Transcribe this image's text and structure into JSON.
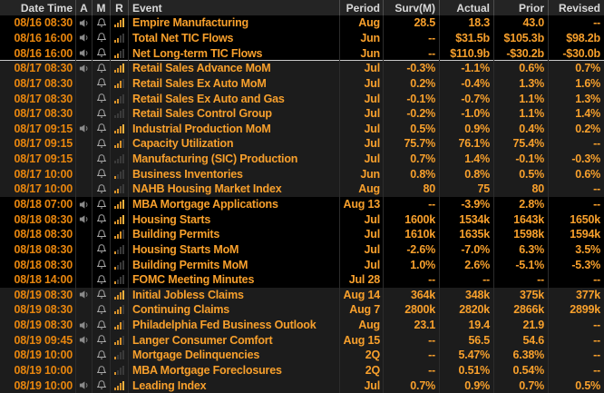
{
  "theme": {
    "background": "#000000",
    "alt_group_background": "#1c1c1c",
    "header_background": "#242424",
    "header_text": "#d9d9d9",
    "datetime_text": "#e8860e",
    "value_text": "#f8a02c",
    "separator": "#2c2c2c",
    "selection_line": "#c9c9c9",
    "relevance_bar_lit": "#d8922a",
    "relevance_bar_unlit": "#3a3a3a",
    "speaker_icon_color": "#8a8a8a",
    "bell_icon_color": "#a8a8a8"
  },
  "icons": {
    "alert": "speaker-icon",
    "monitor": "bell-icon",
    "relevance": "relevance-bars-icon"
  },
  "table": {
    "columns": [
      {
        "key": "datetime",
        "label": "Date Time"
      },
      {
        "key": "alert",
        "label": "A"
      },
      {
        "key": "monitor",
        "label": "M"
      },
      {
        "key": "relevance",
        "label": "R"
      },
      {
        "key": "event",
        "label": "Event"
      },
      {
        "key": "period",
        "label": "Period"
      },
      {
        "key": "survey",
        "label": "Surv(M)"
      },
      {
        "key": "actual",
        "label": "Actual"
      },
      {
        "key": "prior",
        "label": "Prior"
      },
      {
        "key": "revised",
        "label": "Revised"
      }
    ],
    "rows": [
      {
        "date_time": "08/16 08:30",
        "alert_speaker": true,
        "monitor_bell": true,
        "relevance": 4,
        "event": "Empire Manufacturing",
        "period": "Aug",
        "surv": "28.5",
        "actual": "18.3",
        "prior": "43.0",
        "revised": "--",
        "selected": false
      },
      {
        "date_time": "08/16 16:00",
        "alert_speaker": true,
        "monitor_bell": true,
        "relevance": 2,
        "event": "Total Net TIC Flows",
        "period": "Jun",
        "surv": "--",
        "actual": "$31.5b",
        "prior": "$105.3b",
        "revised": "$98.2b",
        "selected": false
      },
      {
        "date_time": "08/16 16:00",
        "alert_speaker": true,
        "monitor_bell": true,
        "relevance": 2,
        "event": "Net Long-term TIC Flows",
        "period": "Jun",
        "surv": "--",
        "actual": "$110.9b",
        "prior": "-$30.2b",
        "revised": "-$30.0b",
        "selected": true
      },
      {
        "date_time": "08/17 08:30",
        "alert_speaker": true,
        "monitor_bell": true,
        "relevance": 4,
        "event": "Retail Sales Advance MoM",
        "period": "Jul",
        "surv": "-0.3%",
        "actual": "-1.1%",
        "prior": "0.6%",
        "revised": "0.7%",
        "selected": false
      },
      {
        "date_time": "08/17 08:30",
        "alert_speaker": false,
        "monitor_bell": true,
        "relevance": 3,
        "event": "Retail Sales Ex Auto MoM",
        "period": "Jul",
        "surv": "0.2%",
        "actual": "-0.4%",
        "prior": "1.3%",
        "revised": "1.6%",
        "selected": false
      },
      {
        "date_time": "08/17 08:30",
        "alert_speaker": false,
        "monitor_bell": true,
        "relevance": 2,
        "event": "Retail Sales Ex Auto and Gas",
        "period": "Jul",
        "surv": "-0.1%",
        "actual": "-0.7%",
        "prior": "1.1%",
        "revised": "1.3%",
        "selected": false
      },
      {
        "date_time": "08/17 08:30",
        "alert_speaker": false,
        "monitor_bell": true,
        "relevance": 0,
        "event": "Retail Sales Control Group",
        "period": "Jul",
        "surv": "-0.2%",
        "actual": "-1.0%",
        "prior": "1.1%",
        "revised": "1.4%",
        "selected": false
      },
      {
        "date_time": "08/17 09:15",
        "alert_speaker": true,
        "monitor_bell": true,
        "relevance": 4,
        "event": "Industrial Production MoM",
        "period": "Jul",
        "surv": "0.5%",
        "actual": "0.9%",
        "prior": "0.4%",
        "revised": "0.2%",
        "selected": false
      },
      {
        "date_time": "08/17 09:15",
        "alert_speaker": false,
        "monitor_bell": true,
        "relevance": 3,
        "event": "Capacity Utilization",
        "period": "Jul",
        "surv": "75.7%",
        "actual": "76.1%",
        "prior": "75.4%",
        "revised": "--",
        "selected": false
      },
      {
        "date_time": "08/17 09:15",
        "alert_speaker": false,
        "monitor_bell": true,
        "relevance": 0,
        "event": "Manufacturing (SIC) Production",
        "period": "Jul",
        "surv": "0.7%",
        "actual": "1.4%",
        "prior": "-0.1%",
        "revised": "-0.3%",
        "selected": false
      },
      {
        "date_time": "08/17 10:00",
        "alert_speaker": false,
        "monitor_bell": true,
        "relevance": 1,
        "event": "Business Inventories",
        "period": "Jun",
        "surv": "0.8%",
        "actual": "0.8%",
        "prior": "0.5%",
        "revised": "0.6%",
        "selected": false
      },
      {
        "date_time": "08/17 10:00",
        "alert_speaker": false,
        "monitor_bell": true,
        "relevance": 2,
        "event": "NAHB Housing Market Index",
        "period": "Aug",
        "surv": "80",
        "actual": "75",
        "prior": "80",
        "revised": "--",
        "selected": false
      },
      {
        "date_time": "08/18 07:00",
        "alert_speaker": true,
        "monitor_bell": true,
        "relevance": 4,
        "event": "MBA Mortgage Applications",
        "period": "Aug 13",
        "surv": "--",
        "actual": "-3.9%",
        "prior": "2.8%",
        "revised": "--",
        "selected": false
      },
      {
        "date_time": "08/18 08:30",
        "alert_speaker": true,
        "monitor_bell": true,
        "relevance": 4,
        "event": "Housing Starts",
        "period": "Jul",
        "surv": "1600k",
        "actual": "1534k",
        "prior": "1643k",
        "revised": "1650k",
        "selected": false
      },
      {
        "date_time": "08/18 08:30",
        "alert_speaker": false,
        "monitor_bell": true,
        "relevance": 3,
        "event": "Building Permits",
        "period": "Jul",
        "surv": "1610k",
        "actual": "1635k",
        "prior": "1598k",
        "revised": "1594k",
        "selected": false
      },
      {
        "date_time": "08/18 08:30",
        "alert_speaker": false,
        "monitor_bell": true,
        "relevance": 1,
        "event": "Housing Starts MoM",
        "period": "Jul",
        "surv": "-2.6%",
        "actual": "-7.0%",
        "prior": "6.3%",
        "revised": "3.5%",
        "selected": false
      },
      {
        "date_time": "08/18 08:30",
        "alert_speaker": false,
        "monitor_bell": true,
        "relevance": 1,
        "event": "Building Permits MoM",
        "period": "Jul",
        "surv": "1.0%",
        "actual": "2.6%",
        "prior": "-5.1%",
        "revised": "-5.3%",
        "selected": false
      },
      {
        "date_time": "08/18 14:00",
        "alert_speaker": false,
        "monitor_bell": true,
        "relevance": 1,
        "event": "FOMC Meeting Minutes",
        "period": "Jul 28",
        "surv": "--",
        "actual": "--",
        "prior": "--",
        "revised": "--",
        "selected": false
      },
      {
        "date_time": "08/19 08:30",
        "alert_speaker": true,
        "monitor_bell": true,
        "relevance": 4,
        "event": "Initial Jobless Claims",
        "period": "Aug 14",
        "surv": "364k",
        "actual": "348k",
        "prior": "375k",
        "revised": "377k",
        "selected": false
      },
      {
        "date_time": "08/19 08:30",
        "alert_speaker": false,
        "monitor_bell": true,
        "relevance": 3,
        "event": "Continuing Claims",
        "period": "Aug 7",
        "surv": "2800k",
        "actual": "2820k",
        "prior": "2866k",
        "revised": "2899k",
        "selected": false
      },
      {
        "date_time": "08/19 08:30",
        "alert_speaker": true,
        "monitor_bell": true,
        "relevance": 3,
        "event": "Philadelphia Fed Business Outlook",
        "period": "Aug",
        "surv": "23.1",
        "actual": "19.4",
        "prior": "21.9",
        "revised": "--",
        "selected": false
      },
      {
        "date_time": "08/19 09:45",
        "alert_speaker": true,
        "monitor_bell": true,
        "relevance": 3,
        "event": "Langer Consumer Comfort",
        "period": "Aug 15",
        "surv": "--",
        "actual": "56.5",
        "prior": "54.6",
        "revised": "--",
        "selected": false
      },
      {
        "date_time": "08/19 10:00",
        "alert_speaker": false,
        "monitor_bell": true,
        "relevance": 1,
        "event": "Mortgage Delinquencies",
        "period": "2Q",
        "surv": "--",
        "actual": "5.47%",
        "prior": "6.38%",
        "revised": "--",
        "selected": false
      },
      {
        "date_time": "08/19 10:00",
        "alert_speaker": false,
        "monitor_bell": true,
        "relevance": 1,
        "event": "MBA Mortgage Foreclosures",
        "period": "2Q",
        "surv": "--",
        "actual": "0.51%",
        "prior": "0.54%",
        "revised": "--",
        "selected": false
      },
      {
        "date_time": "08/19 10:00",
        "alert_speaker": true,
        "monitor_bell": true,
        "relevance": 4,
        "event": "Leading Index",
        "period": "Jul",
        "surv": "0.7%",
        "actual": "0.9%",
        "prior": "0.7%",
        "revised": "0.5%",
        "selected": false
      }
    ]
  }
}
